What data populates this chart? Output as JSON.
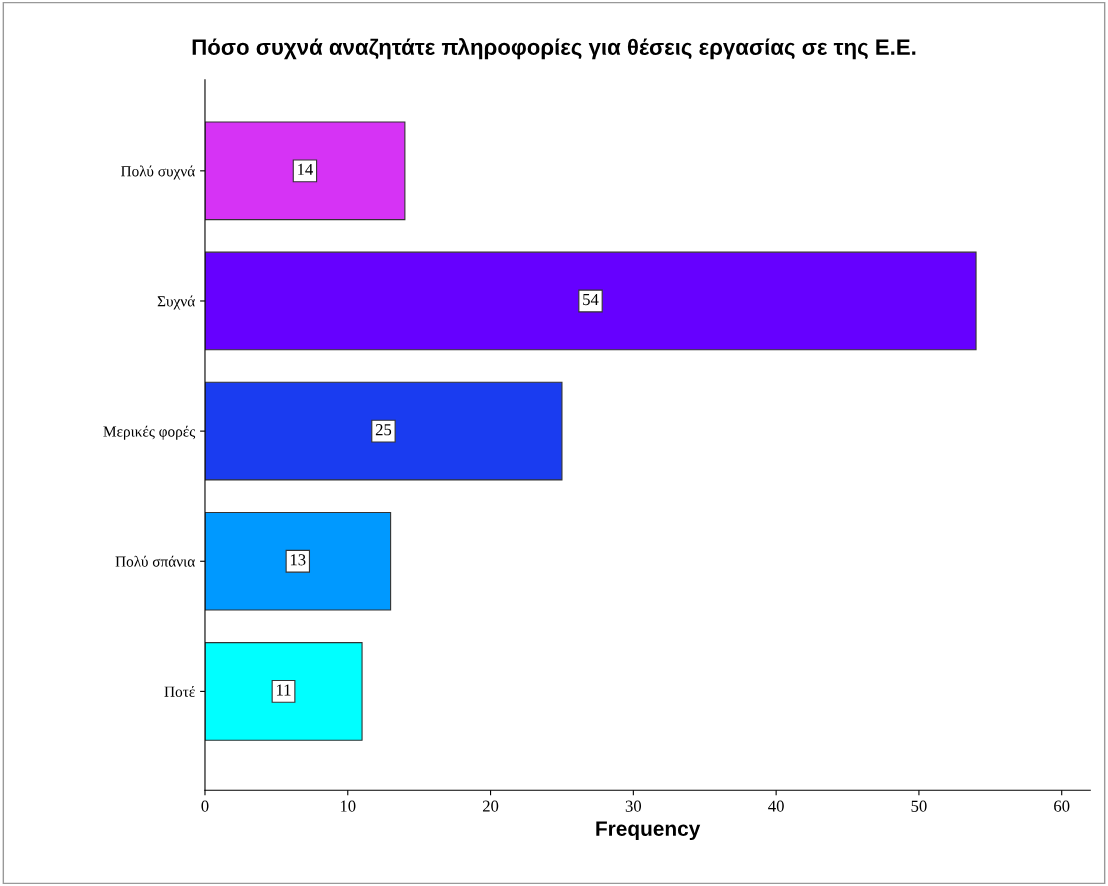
{
  "chart_data": {
    "type": "bar",
    "orientation": "horizontal",
    "title": "Πόσο συχνά αναζητάτε πληροφορίες για θέσεις εργασίας σε της Ε.Ε.",
    "xlabel": "Frequency",
    "categories": [
      "Πολύ συχνά",
      "Συχνά",
      "Μερικές φορές",
      "Πολύ σπάνια",
      "Ποτέ"
    ],
    "values": [
      14,
      54,
      25,
      13,
      11
    ],
    "colors": [
      "#d633f5",
      "#6600ff",
      "#1a3cf0",
      "#0099ff",
      "#00ffff"
    ],
    "xlim": [
      0,
      62
    ],
    "xticks": [
      0,
      10,
      20,
      30,
      40,
      50,
      60
    ],
    "data_labels": true,
    "grid": false,
    "legend": false
  }
}
